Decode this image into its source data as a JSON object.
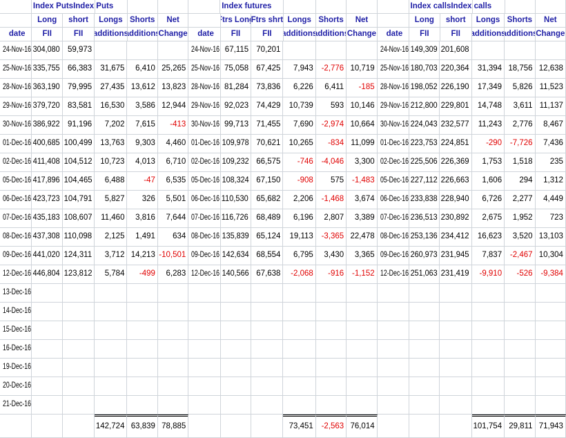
{
  "sections": [
    {
      "title": "Index PutsIndex Puts",
      "headers": {
        "row1": [
          "",
          "Long",
          "short",
          "Longs",
          "Shorts",
          "Net"
        ],
        "row2": [
          "date",
          "FII",
          "FII",
          "additions",
          "additions",
          "Change"
        ]
      },
      "rows": [
        [
          "24-Nov-16",
          "304,080",
          "59,973",
          "",
          "",
          ""
        ],
        [
          "25-Nov-16",
          "335,755",
          "66,383",
          "31,675",
          "6,410",
          "25,265"
        ],
        [
          "28-Nov-16",
          "363,190",
          "79,995",
          "27,435",
          "13,612",
          "13,823"
        ],
        [
          "29-Nov-16",
          "379,720",
          "83,581",
          "16,530",
          "3,586",
          "12,944"
        ],
        [
          "30-Nov-16",
          "386,922",
          "91,196",
          "7,202",
          "7,615",
          "-413"
        ],
        [
          "01-Dec-16",
          "400,685",
          "100,499",
          "13,763",
          "9,303",
          "4,460"
        ],
        [
          "02-Dec-16",
          "411,408",
          "104,512",
          "10,723",
          "4,013",
          "6,710"
        ],
        [
          "05-Dec-16",
          "417,896",
          "104,465",
          "6,488",
          "-47",
          "6,535"
        ],
        [
          "06-Dec-16",
          "423,723",
          "104,791",
          "5,827",
          "326",
          "5,501"
        ],
        [
          "07-Dec-16",
          "435,183",
          "108,607",
          "11,460",
          "3,816",
          "7,644"
        ],
        [
          "08-Dec-16",
          "437,308",
          "110,098",
          "2,125",
          "1,491",
          "634"
        ],
        [
          "09-Dec-16",
          "441,020",
          "124,311",
          "3,712",
          "14,213",
          "-10,501"
        ],
        [
          "12-Dec-16",
          "446,804",
          "123,812",
          "5,784",
          "-499",
          "6,283"
        ],
        [
          "13-Dec-16",
          "",
          "",
          "",
          "",
          ""
        ],
        [
          "14-Dec-16",
          "",
          "",
          "",
          "",
          ""
        ],
        [
          "15-Dec-16",
          "",
          "",
          "",
          "",
          ""
        ],
        [
          "16-Dec-16",
          "",
          "",
          "",
          "",
          ""
        ],
        [
          "19-Dec-16",
          "",
          "",
          "",
          "",
          ""
        ],
        [
          "20-Dec-16",
          "",
          "",
          "",
          "",
          ""
        ],
        [
          "21-Dec-16",
          "",
          "",
          "",
          "",
          ""
        ]
      ],
      "totals": [
        "",
        "",
        "",
        "142,724",
        "63,839",
        "78,885"
      ]
    },
    {
      "title": "Index futures",
      "headers": {
        "row1": [
          "",
          "Ftrs Long",
          "Ftrs shrt",
          "Longs",
          "Shorts",
          "Net"
        ],
        "row2": [
          "date",
          "FII",
          "FII",
          "additions",
          "additions",
          "Change"
        ]
      },
      "rows": [
        [
          "24-Nov-16",
          "67,115",
          "70,201",
          "",
          "",
          ""
        ],
        [
          "25-Nov-16",
          "75,058",
          "67,425",
          "7,943",
          "-2,776",
          "10,719"
        ],
        [
          "28-Nov-16",
          "81,284",
          "73,836",
          "6,226",
          "6,411",
          "-185"
        ],
        [
          "29-Nov-16",
          "92,023",
          "74,429",
          "10,739",
          "593",
          "10,146"
        ],
        [
          "30-Nov-16",
          "99,713",
          "71,455",
          "7,690",
          "-2,974",
          "10,664"
        ],
        [
          "01-Dec-16",
          "109,978",
          "70,621",
          "10,265",
          "-834",
          "11,099"
        ],
        [
          "02-Dec-16",
          "109,232",
          "66,575",
          "-746",
          "-4,046",
          "3,300"
        ],
        [
          "05-Dec-16",
          "108,324",
          "67,150",
          "-908",
          "575",
          "-1,483"
        ],
        [
          "06-Dec-16",
          "110,530",
          "65,682",
          "2,206",
          "-1,468",
          "3,674"
        ],
        [
          "07-Dec-16",
          "116,726",
          "68,489",
          "6,196",
          "2,807",
          "3,389"
        ],
        [
          "08-Dec-16",
          "135,839",
          "65,124",
          "19,113",
          "-3,365",
          "22,478"
        ],
        [
          "09-Dec-16",
          "142,634",
          "68,554",
          "6,795",
          "3,430",
          "3,365"
        ],
        [
          "12-Dec-16",
          "140,566",
          "67,638",
          "-2,068",
          "-916",
          "-1,152"
        ],
        [
          "",
          "",
          "",
          "",
          "",
          ""
        ],
        [
          "",
          "",
          "",
          "",
          "",
          ""
        ],
        [
          "",
          "",
          "",
          "",
          "",
          ""
        ],
        [
          "",
          "",
          "",
          "",
          "",
          ""
        ],
        [
          "",
          "",
          "",
          "",
          "",
          ""
        ],
        [
          "",
          "",
          "",
          "",
          "",
          ""
        ],
        [
          "",
          "",
          "",
          "",
          "",
          ""
        ]
      ],
      "totals": [
        "",
        "",
        "",
        "73,451",
        "-2,563",
        "76,014"
      ]
    },
    {
      "title": "Index callsIndex calls",
      "headers": {
        "row1": [
          "",
          "Long",
          "short",
          "Longs",
          "Shorts",
          "Net"
        ],
        "row2": [
          "date",
          "FII",
          "FII",
          "additions",
          "additions",
          "Change"
        ]
      },
      "rows": [
        [
          "24-Nov-16",
          "149,309",
          "201,608",
          "",
          "",
          ""
        ],
        [
          "25-Nov-16",
          "180,703",
          "220,364",
          "31,394",
          "18,756",
          "12,638"
        ],
        [
          "28-Nov-16",
          "198,052",
          "226,190",
          "17,349",
          "5,826",
          "11,523"
        ],
        [
          "29-Nov-16",
          "212,800",
          "229,801",
          "14,748",
          "3,611",
          "11,137"
        ],
        [
          "30-Nov-16",
          "224,043",
          "232,577",
          "11,243",
          "2,776",
          "8,467"
        ],
        [
          "01-Dec-16",
          "223,753",
          "224,851",
          "-290",
          "-7,726",
          "7,436"
        ],
        [
          "02-Dec-16",
          "225,506",
          "226,369",
          "1,753",
          "1,518",
          "235"
        ],
        [
          "05-Dec-16",
          "227,112",
          "226,663",
          "1,606",
          "294",
          "1,312"
        ],
        [
          "06-Dec-16",
          "233,838",
          "228,940",
          "6,726",
          "2,277",
          "4,449"
        ],
        [
          "07-Dec-16",
          "236,513",
          "230,892",
          "2,675",
          "1,952",
          "723"
        ],
        [
          "08-Dec-16",
          "253,136",
          "234,412",
          "16,623",
          "3,520",
          "13,103"
        ],
        [
          "09-Dec-16",
          "260,973",
          "231,945",
          "7,837",
          "-2,467",
          "10,304"
        ],
        [
          "12-Dec-16",
          "251,063",
          "231,419",
          "-9,910",
          "-526",
          "-9,384"
        ],
        [
          "",
          "",
          "",
          "",
          "",
          ""
        ],
        [
          "",
          "",
          "",
          "",
          "",
          ""
        ],
        [
          "",
          "",
          "",
          "",
          "",
          ""
        ],
        [
          "",
          "",
          "",
          "",
          "",
          ""
        ],
        [
          "",
          "",
          "",
          "",
          "",
          ""
        ],
        [
          "",
          "",
          "",
          "",
          "",
          ""
        ],
        [
          "",
          "",
          "",
          "",
          "",
          ""
        ]
      ],
      "totals": [
        "",
        "",
        "",
        "101,754",
        "29,811",
        "71,943"
      ]
    }
  ],
  "colors": {
    "header": "#1f1fa6",
    "negative": "#e00000",
    "grid": "#cfd4da"
  }
}
